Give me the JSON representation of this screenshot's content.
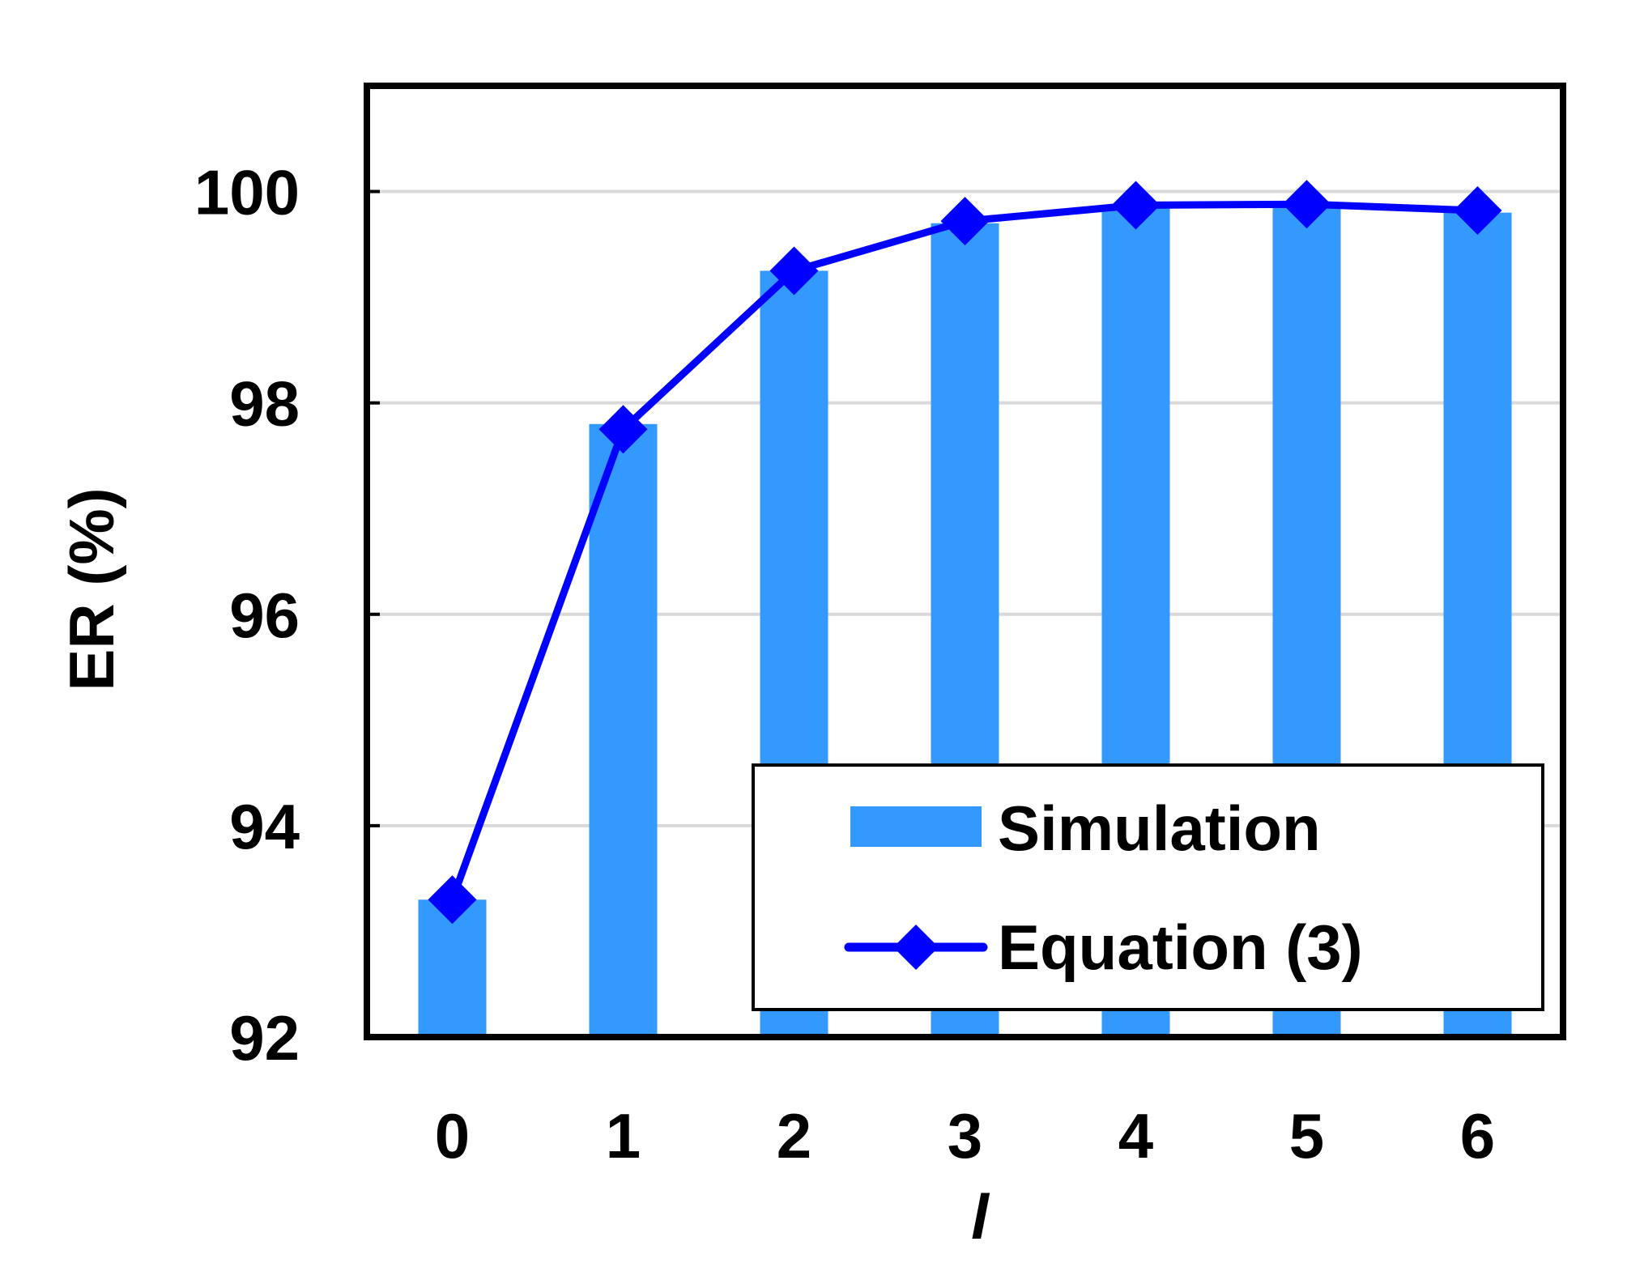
{
  "chart_data": {
    "type": "bar",
    "xlabel": "l",
    "ylabel": "ER (%)",
    "categories": [
      "0",
      "1",
      "2",
      "3",
      "4",
      "5",
      "6"
    ],
    "ylim": [
      92,
      101
    ],
    "yticks": [
      "92",
      "94",
      "96",
      "98",
      "100"
    ],
    "grid": true,
    "legend_position": "bottom-right",
    "series": [
      {
        "name": "Simulation",
        "type": "bar",
        "values": [
          93.3,
          97.8,
          99.25,
          99.7,
          99.85,
          99.85,
          99.8
        ],
        "color": "#3399ff"
      },
      {
        "name": "Equation (3)",
        "type": "line",
        "marker": "diamond",
        "values": [
          93.3,
          97.75,
          99.25,
          99.72,
          99.87,
          99.88,
          99.82
        ],
        "color": "#0000ff"
      }
    ]
  }
}
